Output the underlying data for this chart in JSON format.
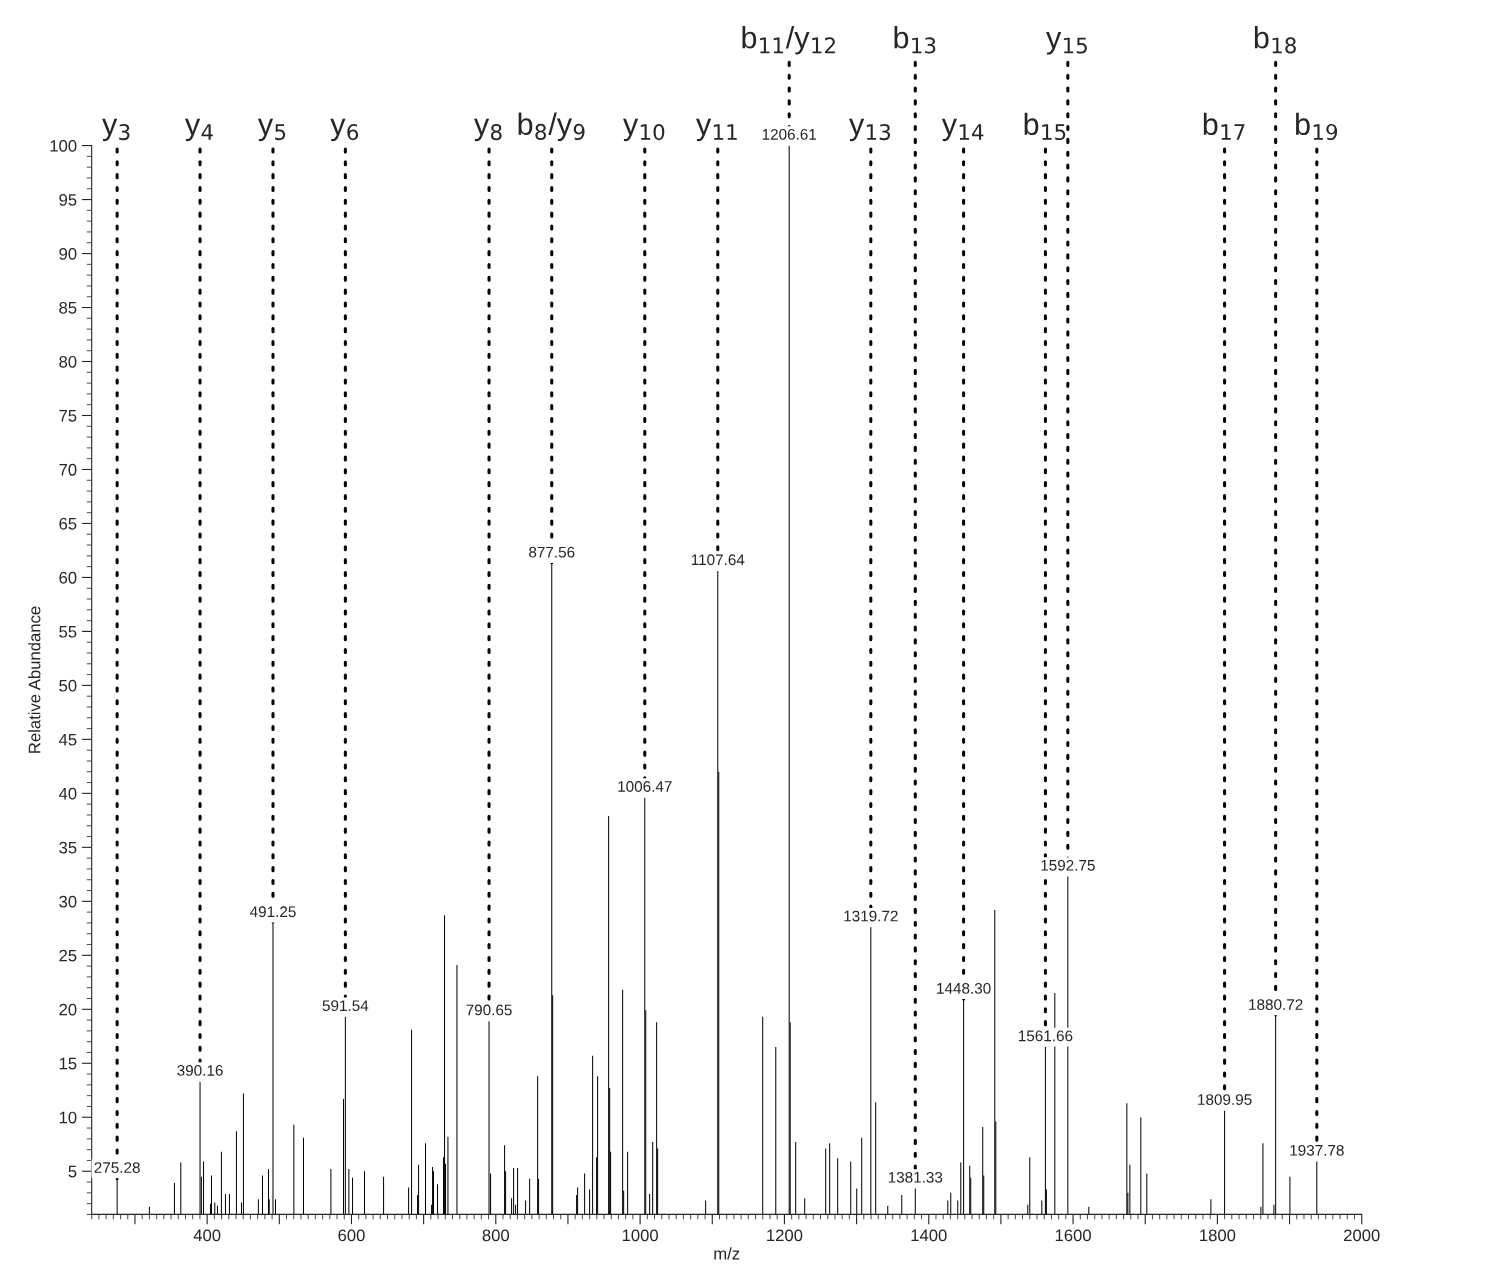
{
  "chart_data": {
    "type": "bar",
    "xlabel": "m/z",
    "ylabel": "Relative Abundance",
    "xlim": [
      240,
      2000
    ],
    "ylim": [
      1,
      100
    ],
    "xticks": [
      {
        "value": 300,
        "label": null
      },
      400,
      {
        "value": 500,
        "label": null
      },
      600,
      {
        "value": 700,
        "label": null
      },
      800,
      {
        "value": 900,
        "label": null
      },
      1000,
      {
        "value": 1100,
        "label": null
      },
      1200,
      {
        "value": 1300,
        "label": null
      },
      1400,
      {
        "value": 1500,
        "label": null
      },
      1600,
      {
        "value": 1700,
        "label": null
      },
      1800,
      {
        "value": 1900,
        "label": null
      },
      2000
    ],
    "yticks": [
      5,
      10,
      15,
      20,
      25,
      30,
      35,
      40,
      45,
      50,
      55,
      60,
      65,
      70,
      75,
      80,
      85,
      90,
      95,
      100
    ],
    "grid": false,
    "legend": false,
    "x": [
      275.28,
      320,
      354.7,
      363.5,
      390.16,
      392,
      395,
      404.6,
      406,
      410.6,
      414.3,
      419.8,
      425.4,
      430.9,
      440.6,
      447.6,
      450.3,
      471,
      476.7,
      485,
      486,
      491.25,
      494.7,
      520.2,
      533.5,
      571.5,
      589,
      591.54,
      596.4,
      601.5,
      618.1,
      644.5,
      679.2,
      683.3,
      691.6,
      693,
      702.6,
      711,
      712.4,
      713.7,
      719.3,
      727.6,
      729,
      730.4,
      733.7,
      746.2,
      790.65,
      792.8,
      812.2,
      813.6,
      821.9,
      824.7,
      827.5,
      830.2,
      841.3,
      846.9,
      858,
      859.3,
      877.56,
      878.8,
      912,
      913.4,
      923.1,
      930,
      934.2,
      939.7,
      941.1,
      956.4,
      957.8,
      959.1,
      975.8,
      977.2,
      982.7,
      1006.47,
      1007.8,
      1013.2,
      1017.4,
      1022.9,
      1024.3,
      1090.8,
      1107.64,
      1109,
      1169.9,
      1188,
      1206.61,
      1208,
      1215.6,
      1228.1,
      1257.2,
      1262.7,
      1273.8,
      1291.9,
      1300.2,
      1307.1,
      1319.72,
      1326.5,
      1343.2,
      1362.6,
      1381.33,
      1426.4,
      1430.5,
      1440.2,
      1444.4,
      1448.3,
      1456.8,
      1458.2,
      1474.8,
      1476.2,
      1491.5,
      1492.9,
      1537.2,
      1540,
      1556.7,
      1561.66,
      1563,
      1574.7,
      1592.75,
      1621.8,
      1674.5,
      1675.9,
      1678.7,
      1693.9,
      1702.2,
      1791,
      1809.95,
      1860.3,
      1863.1,
      1878.3,
      1880.72,
      1900.5,
      1937.78
    ],
    "series": [
      {
        "color": "#000000",
        "values": [
          4.3,
          1.7,
          3.9,
          5.8,
          13.3,
          4.5,
          5.9,
          2.0,
          4.6,
          2.1,
          1.8,
          6.8,
          2.9,
          2.9,
          8.7,
          2.1,
          12.2,
          2.4,
          4.6,
          5.2,
          2.4,
          28.0,
          2.4,
          9.3,
          8.1,
          5.2,
          11.7,
          19.3,
          5.2,
          4.4,
          5.0,
          4.5,
          3.5,
          18.1,
          2.8,
          5.6,
          7.6,
          1.9,
          5.4,
          5.0,
          3.8,
          6.3,
          28.7,
          5.7,
          8.2,
          24.1,
          18.9,
          4.8,
          7.4,
          5.0,
          2.5,
          5.3,
          1.9,
          5.3,
          2.3,
          4.3,
          13.8,
          4.3,
          61.3,
          21.3,
          2.8,
          3.5,
          4.8,
          3.3,
          15.7,
          6.3,
          13.8,
          37.9,
          12.7,
          6.8,
          21.8,
          3.2,
          6.8,
          39.6,
          19.9,
          2.9,
          7.7,
          18.8,
          7.1,
          2.3,
          60.6,
          42.0,
          19.3,
          16.5,
          100,
          18.8,
          7.7,
          2.5,
          7.1,
          7.6,
          6.2,
          5.9,
          3.4,
          8.1,
          27.6,
          11.4,
          1.8,
          2.8,
          3.4,
          2.3,
          3.0,
          2.3,
          5.8,
          20.9,
          5.5,
          4.4,
          9.1,
          4.6,
          29.2,
          9.6,
          1.9,
          6.3,
          2.3,
          16.5,
          3.3,
          21.5,
          32.3,
          1.7,
          11.3,
          3.0,
          5.6,
          10.0,
          4.8,
          2.4,
          10.6,
          1.7,
          7.6,
          1.9,
          19.4,
          4.5,
          5.9
        ]
      }
    ],
    "annotations": [
      {
        "text": "275.28",
        "x": 275.28,
        "y": 4.3
      },
      {
        "text": "390.16",
        "x": 390.16,
        "y": 13.3
      },
      {
        "text": "491.25",
        "x": 491.25,
        "y": 28.0
      },
      {
        "text": "591.54",
        "x": 591.54,
        "y": 19.3
      },
      {
        "text": "790.65",
        "x": 790.65,
        "y": 18.9
      },
      {
        "text": "877.56",
        "x": 877.56,
        "y": 61.3
      },
      {
        "text": "1006.47",
        "x": 1006.47,
        "y": 39.6
      },
      {
        "text": "1107.64",
        "x": 1107.64,
        "y": 60.6
      },
      {
        "text": "1206.61",
        "x": 1206.61,
        "y": 100
      },
      {
        "text": "1319.72",
        "x": 1319.72,
        "y": 27.6
      },
      {
        "text": "1381.33",
        "x": 1381.33,
        "y": 3.4
      },
      {
        "text": "1448.30",
        "x": 1448.3,
        "y": 20.9
      },
      {
        "text": "1561.66",
        "x": 1561.66,
        "y": 16.5
      },
      {
        "text": "1592.75",
        "x": 1592.75,
        "y": 32.3
      },
      {
        "text": "1809.95",
        "x": 1809.95,
        "y": 10.6
      },
      {
        "text": "1880.72",
        "x": 1880.72,
        "y": 19.4
      },
      {
        "text": "1937.78",
        "x": 1937.78,
        "y": 5.9
      },
      {
        "text": "y$_{3}$",
        "x": 275.28,
        "y": 4.3
      },
      {
        "text": "y$_{4}$",
        "x": 390.16,
        "y": 13.3
      },
      {
        "text": "y$_{5}$",
        "x": 491.25,
        "y": 28.0
      },
      {
        "text": "y$_{6}$",
        "x": 591.54,
        "y": 19.3
      },
      {
        "text": "y$_{8}$",
        "x": 790.65,
        "y": 18.9
      },
      {
        "text": "b$_{8}$/y$_{9}$",
        "x": 877.56,
        "y": 61.3
      },
      {
        "text": "y$_{10}$",
        "x": 1006.47,
        "y": 39.6
      },
      {
        "text": "y$_{11}$",
        "x": 1107.64,
        "y": 60.6
      },
      {
        "text": "b$_{11}$/y$_{12}$",
        "x": 1206.61,
        "y": 100
      },
      {
        "text": "y$_{13}$",
        "x": 1319.72,
        "y": 27.6
      },
      {
        "text": "b$_{13}$",
        "x": 1381.33,
        "y": 3.4
      },
      {
        "text": "y$_{14}$",
        "x": 1448.3,
        "y": 20.9
      },
      {
        "text": "b$_{15}$",
        "x": 1561.66,
        "y": 16.5
      },
      {
        "text": "y$_{15}$",
        "x": 1592.75,
        "y": 32.3
      },
      {
        "text": "b$_{17}$",
        "x": 1809.95,
        "y": 10.6
      },
      {
        "text": "b$_{18}$",
        "x": 1880.72,
        "y": 19.4
      },
      {
        "text": "b$_{19}$",
        "x": 1937.78,
        "y": 5.9
      }
    ]
  }
}
